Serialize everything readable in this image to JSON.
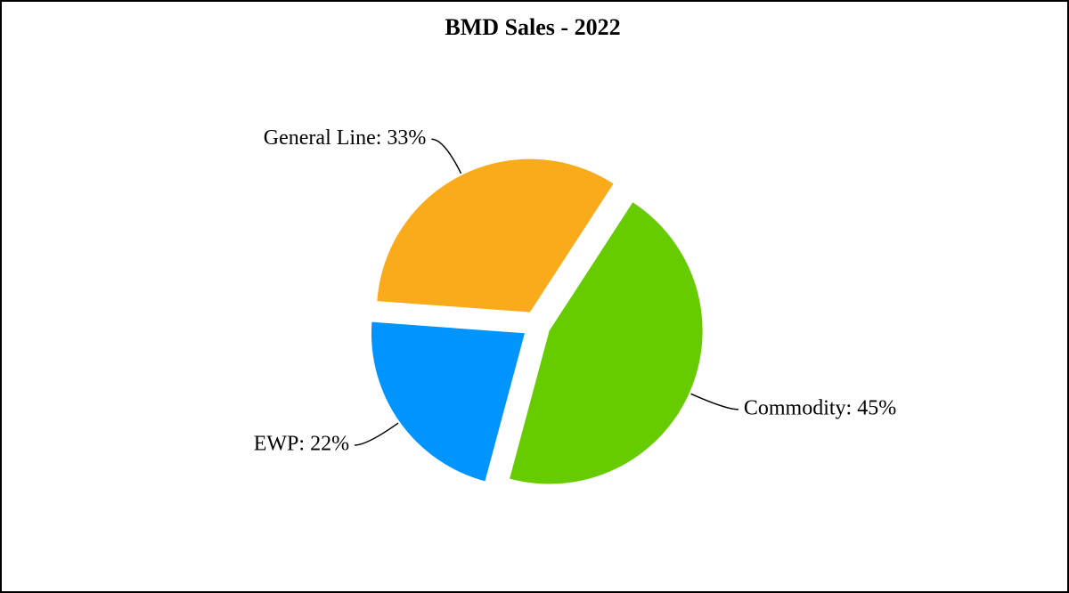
{
  "chart_data": {
    "type": "pie",
    "title": "BMD Sales - 2022",
    "values": [
      45,
      22,
      33
    ],
    "value_labels": [
      "Commodity: 45%",
      "EWP: 22%",
      "General Line: 33%"
    ],
    "colors": [
      "#66CC00",
      "#0094FF",
      "#F9AB1C"
    ]
  }
}
